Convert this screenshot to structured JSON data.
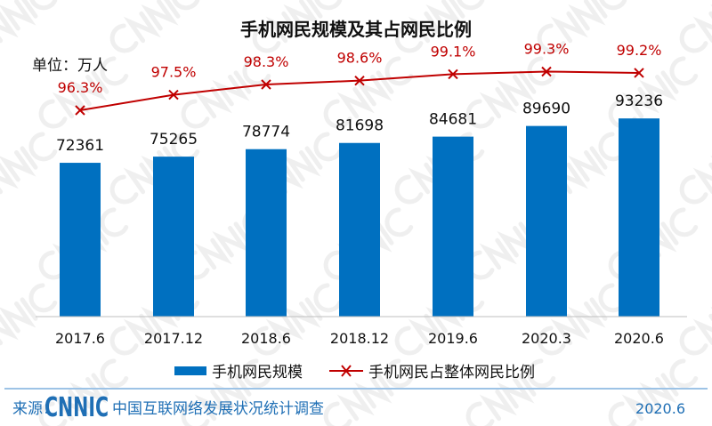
{
  "chart_data": {
    "type": "bar",
    "title": "手机网民规模及其占网民比例",
    "unit_label": "单位：万人",
    "categories": [
      "2017.6",
      "2017.12",
      "2018.6",
      "2018.12",
      "2019.6",
      "2020.3",
      "2020.6"
    ],
    "series": [
      {
        "name": "手机网民规模",
        "type": "bar",
        "color": "#0070c0",
        "values": [
          72361,
          75265,
          78774,
          81698,
          84681,
          89690,
          93236
        ]
      },
      {
        "name": "手机网民占整体网民比例",
        "type": "line",
        "color": "#c00000",
        "marker": "x",
        "values": [
          96.3,
          97.5,
          98.3,
          98.6,
          99.1,
          99.3,
          99.2
        ],
        "labels": [
          "96.3%",
          "97.5%",
          "98.3%",
          "98.6%",
          "99.1%",
          "99.3%",
          "99.2%"
        ]
      }
    ],
    "grid": false,
    "legend": "bottom"
  },
  "footer": {
    "source_label": "来源：",
    "logo_text": "CNNIC",
    "survey_name": "中国互联网络发展状况统计调查",
    "date": "2020.6"
  },
  "watermark": "CNNIC"
}
